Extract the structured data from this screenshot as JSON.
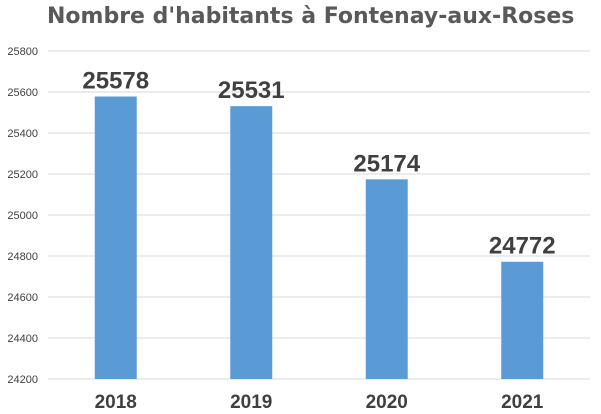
{
  "chart_data": {
    "type": "bar",
    "title": "Nombre d'habitants à Fontenay-aux-Roses",
    "categories": [
      "2018",
      "2019",
      "2020",
      "2021"
    ],
    "values": [
      25578,
      25531,
      25174,
      24772
    ],
    "data_labels": [
      "25578",
      "25531",
      "25174",
      "24772"
    ],
    "ylim": [
      24200,
      25800
    ],
    "yticks": [
      24200,
      24400,
      24600,
      24800,
      25000,
      25200,
      25400,
      25600,
      25800
    ],
    "grid": true,
    "legend": "none",
    "bar_color": "#5b9bd5",
    "grid_color": "#d9d9d9"
  }
}
